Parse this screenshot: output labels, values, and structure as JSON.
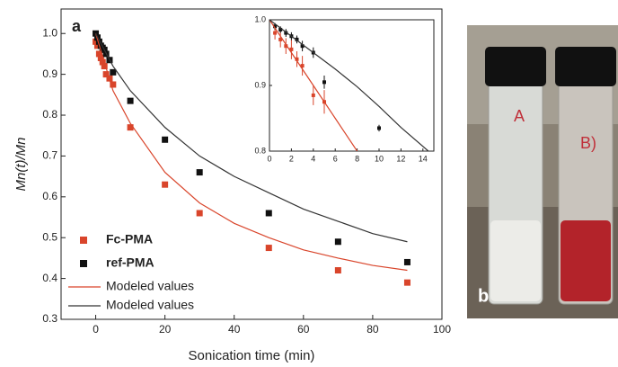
{
  "chart_data": [
    {
      "type": "scatter",
      "panel_label": "a",
      "x_label": "Sonication time (min)",
      "y_label": "Mn(t)/Mn",
      "xlim": [
        -10,
        100
      ],
      "xticks": [
        0,
        20,
        40,
        60,
        80,
        100
      ],
      "ylim": [
        0.3,
        1.06
      ],
      "yticks": [
        0.3,
        0.4,
        0.5,
        0.6,
        0.7,
        0.8,
        0.9,
        {
          "value": 1,
          "label": "1.0"
        }
      ],
      "legend": "lower left",
      "series": [
        {
          "name": "Fc-PMA",
          "color": "#d9452b",
          "style": "marker",
          "x": [
            0,
            0.5,
            1,
            1.5,
            2,
            2.5,
            3,
            4,
            5,
            10,
            20,
            30,
            50,
            70,
            90
          ],
          "values": [
            0.98,
            0.97,
            0.95,
            0.94,
            0.93,
            0.92,
            0.9,
            0.89,
            0.875,
            0.77,
            0.63,
            0.56,
            0.475,
            0.42,
            0.39
          ]
        },
        {
          "name": "ref-PMA",
          "color": "#111111",
          "style": "marker",
          "x": [
            0,
            0.5,
            1,
            1.5,
            2,
            2.5,
            3,
            4,
            5,
            10,
            20,
            30,
            50,
            70,
            90
          ],
          "values": [
            1.0,
            0.99,
            0.98,
            0.97,
            0.965,
            0.96,
            0.95,
            0.935,
            0.905,
            0.835,
            0.74,
            0.66,
            0.56,
            0.49,
            0.44
          ]
        },
        {
          "name": "Modeled values",
          "color": "#d9452b",
          "style": "line",
          "x": [
            0,
            5,
            10,
            20,
            30,
            40,
            50,
            60,
            70,
            80,
            90
          ],
          "values": [
            1.0,
            0.86,
            0.78,
            0.66,
            0.585,
            0.535,
            0.5,
            0.47,
            0.45,
            0.432,
            0.42
          ]
        },
        {
          "name": "Modeled values",
          "color": "#333333",
          "style": "line",
          "x": [
            0,
            5,
            10,
            20,
            30,
            40,
            50,
            60,
            70,
            80,
            90
          ],
          "values": [
            1.0,
            0.92,
            0.86,
            0.77,
            0.7,
            0.65,
            0.61,
            0.57,
            0.54,
            0.51,
            0.49
          ]
        }
      ]
    },
    {
      "type": "scatter",
      "xlim": [
        0,
        15
      ],
      "xticks": [
        0,
        2,
        4,
        6,
        8,
        10,
        12,
        14
      ],
      "ylim": [
        0.8,
        1.0
      ],
      "yticks": [
        0.8,
        0.9,
        {
          "value": 1,
          "label": "1.0"
        }
      ],
      "series": [
        {
          "color": "#d9452b",
          "style": "marker",
          "x": [
            0.5,
            1,
            1.5,
            2,
            2.5,
            3,
            4,
            5
          ],
          "values": [
            0.98,
            0.97,
            0.96,
            0.955,
            0.94,
            0.93,
            0.885,
            0.875
          ],
          "errors": [
            0.01,
            0.012,
            0.012,
            0.015,
            0.012,
            0.015,
            0.015,
            0.018
          ]
        },
        {
          "color": "#111111",
          "style": "marker",
          "x": [
            0.5,
            1,
            1.5,
            2,
            2.5,
            3,
            4,
            5,
            10
          ],
          "values": [
            0.99,
            0.985,
            0.98,
            0.975,
            0.97,
            0.96,
            0.95,
            0.905,
            0.835
          ],
          "errors": [
            0.005,
            0.005,
            0.006,
            0.006,
            0.006,
            0.008,
            0.008,
            0.01,
            0.005
          ]
        },
        {
          "color": "#d9452b",
          "style": "line",
          "x": [
            0,
            2,
            4,
            6,
            8
          ],
          "values": [
            1.0,
            0.95,
            0.9,
            0.85,
            0.8
          ]
        },
        {
          "color": "#333333",
          "style": "line",
          "x": [
            0,
            2,
            4,
            6,
            8,
            10,
            12,
            14.5
          ],
          "values": [
            1.0,
            0.975,
            0.95,
            0.925,
            0.898,
            0.868,
            0.836,
            0.8
          ]
        }
      ]
    }
  ],
  "panel_b": {
    "label": "b",
    "vial_labels": [
      "A",
      "B)"
    ]
  }
}
